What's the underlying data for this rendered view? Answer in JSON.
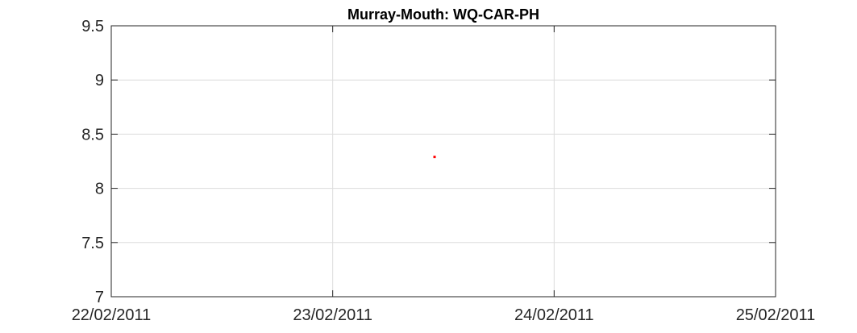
{
  "chart_data": {
    "type": "scatter",
    "title": "Murray-Mouth: WQ-CAR-PH",
    "xlabel": "",
    "ylabel": "",
    "x_ticks": [
      "22/02/2011",
      "23/02/2011",
      "24/02/2011",
      "25/02/2011"
    ],
    "x_tick_values": [
      0,
      1,
      2,
      3
    ],
    "xlim": [
      0,
      3
    ],
    "y_ticks": [
      "7",
      "7.5",
      "8",
      "8.5",
      "9",
      "9.5"
    ],
    "y_tick_values": [
      7,
      7.5,
      8,
      8.5,
      9,
      9.5
    ],
    "ylim": [
      7,
      9.5
    ],
    "grid": true,
    "series": [
      {
        "x": [
          "23/02/2011 11:00"
        ],
        "x_values": [
          1.46
        ],
        "y": [
          8.29
        ],
        "color": "#ff0000"
      }
    ]
  }
}
